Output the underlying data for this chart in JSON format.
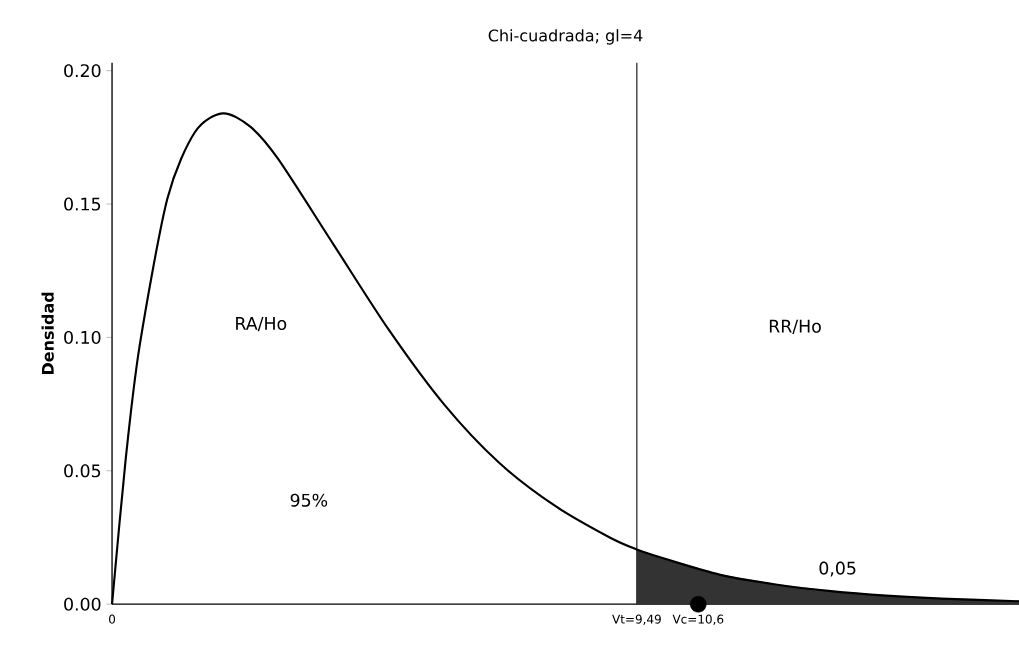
{
  "chart_data": {
    "type": "line",
    "title": "Chi-cuadrada; gl=4",
    "ylabel": "Densidad",
    "xlim": [
      0,
      16.4
    ],
    "ylim": [
      0,
      0.203
    ],
    "xticks": [
      0,
      {
        "value": 9.49,
        "label": "Vt=9,49"
      },
      {
        "value": 10.6,
        "label": "Vc=10,6"
      }
    ],
    "yticks": [
      {
        "value": 0,
        "label": "0.00"
      },
      {
        "value": 0.05,
        "label": "0.05"
      },
      {
        "value": 0.1,
        "label": "0.10"
      },
      {
        "value": 0.15,
        "label": "0.15"
      },
      {
        "value": 0.2,
        "label": "0.20"
      }
    ],
    "series": [
      {
        "type": "area",
        "color": "#333333",
        "x": [
          9.49,
          10,
          11,
          12,
          13,
          14,
          15,
          16.4
        ],
        "values": [
          0.0205,
          0.017,
          0.011,
          0.0074,
          0.0049,
          0.0032,
          0.0021,
          0.0011
        ]
      },
      {
        "color": "#000000",
        "x": [
          0,
          0.25,
          0.5,
          1,
          1.5,
          2,
          2.5,
          3,
          4,
          5,
          6,
          7,
          8,
          9,
          9.49,
          10,
          11,
          12,
          13,
          14,
          15,
          16.4
        ],
        "values": [
          0,
          0.055,
          0.097,
          0.152,
          0.177,
          0.184,
          0.179,
          0.167,
          0.135,
          0.103,
          0.075,
          0.053,
          0.037,
          0.025,
          0.0205,
          0.017,
          0.011,
          0.0074,
          0.0049,
          0.0032,
          0.0021,
          0.0011
        ]
      },
      {
        "type": "scatter",
        "color": "#000000",
        "x": [
          10.6
        ],
        "values": [
          0
        ]
      }
    ],
    "ref_lines": [
      {
        "axis": "x",
        "value": 9.49,
        "color": "#000000"
      }
    ],
    "annotations": [
      "RA/Ho",
      "95%",
      "RR/Ho",
      "0,05"
    ],
    "grid": false
  }
}
